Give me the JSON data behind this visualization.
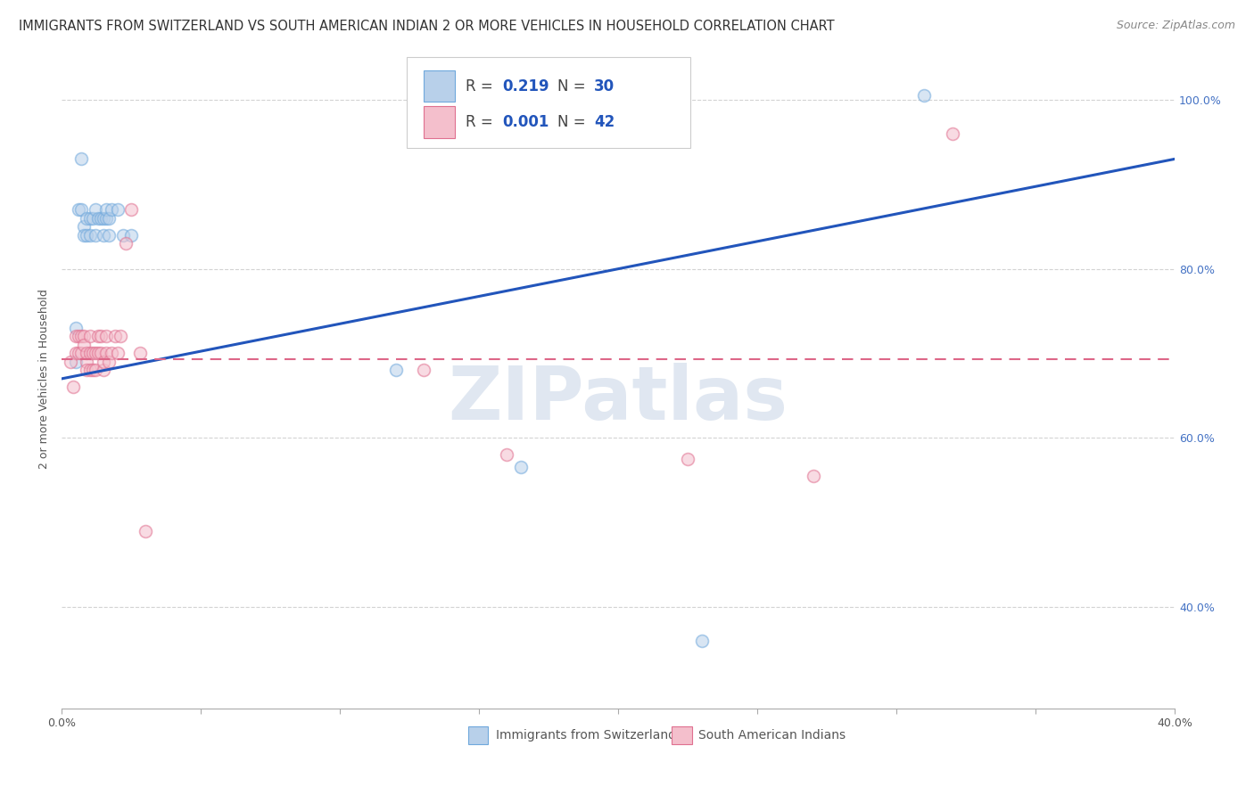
{
  "title": "IMMIGRANTS FROM SWITZERLAND VS SOUTH AMERICAN INDIAN 2 OR MORE VEHICLES IN HOUSEHOLD CORRELATION CHART",
  "source": "Source: ZipAtlas.com",
  "ylabel": "2 or more Vehicles in Household",
  "xlim": [
    0.0,
    0.4
  ],
  "ylim": [
    0.28,
    1.06
  ],
  "x_ticks": [
    0.0,
    0.05,
    0.1,
    0.15,
    0.2,
    0.25,
    0.3,
    0.35,
    0.4
  ],
  "x_tick_labels_show": {
    "0.0": "0.0%",
    "0.40": "40.0%"
  },
  "y_ticks_right": [
    0.4,
    0.6,
    0.8,
    1.0
  ],
  "y_tick_labels_right": [
    "40.0%",
    "60.0%",
    "80.0%",
    "100.0%"
  ],
  "blue_scatter_x": [
    0.005,
    0.005,
    0.006,
    0.007,
    0.007,
    0.008,
    0.008,
    0.009,
    0.009,
    0.01,
    0.01,
    0.011,
    0.012,
    0.012,
    0.013,
    0.014,
    0.015,
    0.015,
    0.016,
    0.016,
    0.017,
    0.017,
    0.018,
    0.02,
    0.022,
    0.025,
    0.12,
    0.165,
    0.23,
    0.31
  ],
  "blue_scatter_y": [
    0.69,
    0.73,
    0.87,
    0.93,
    0.87,
    0.85,
    0.84,
    0.84,
    0.86,
    0.84,
    0.86,
    0.86,
    0.87,
    0.84,
    0.86,
    0.86,
    0.86,
    0.84,
    0.86,
    0.87,
    0.84,
    0.86,
    0.87,
    0.87,
    0.84,
    0.84,
    0.68,
    0.565,
    0.36,
    1.005
  ],
  "pink_scatter_x": [
    0.003,
    0.004,
    0.005,
    0.005,
    0.006,
    0.006,
    0.007,
    0.007,
    0.008,
    0.008,
    0.009,
    0.009,
    0.009,
    0.01,
    0.01,
    0.01,
    0.011,
    0.011,
    0.012,
    0.012,
    0.013,
    0.013,
    0.014,
    0.014,
    0.015,
    0.015,
    0.016,
    0.016,
    0.017,
    0.018,
    0.019,
    0.02,
    0.021,
    0.023,
    0.025,
    0.028,
    0.03,
    0.13,
    0.16,
    0.225,
    0.27,
    0.32
  ],
  "pink_scatter_y": [
    0.69,
    0.66,
    0.7,
    0.72,
    0.7,
    0.72,
    0.7,
    0.72,
    0.72,
    0.71,
    0.69,
    0.68,
    0.7,
    0.68,
    0.7,
    0.72,
    0.68,
    0.7,
    0.68,
    0.7,
    0.7,
    0.72,
    0.7,
    0.72,
    0.68,
    0.69,
    0.7,
    0.72,
    0.69,
    0.7,
    0.72,
    0.7,
    0.72,
    0.83,
    0.87,
    0.7,
    0.49,
    0.68,
    0.58,
    0.575,
    0.555,
    0.96
  ],
  "blue_line_x": [
    0.0,
    0.4
  ],
  "blue_line_y": [
    0.67,
    0.93
  ],
  "pink_line_x": [
    0.0,
    0.4
  ],
  "pink_line_y": [
    0.693,
    0.693
  ],
  "scatter_size": 100,
  "scatter_alpha": 0.55,
  "scatter_linewidth": 1.2,
  "blue_scatter_color": "#b8d0ea",
  "blue_scatter_edge": "#6fa8dc",
  "pink_scatter_color": "#f4bfcc",
  "pink_scatter_edge": "#e07090",
  "blue_line_color": "#2255bb",
  "pink_line_color": "#dd6688",
  "grid_color": "#c8c8c8",
  "background_color": "#ffffff",
  "title_fontsize": 10.5,
  "source_fontsize": 9,
  "ylabel_fontsize": 9,
  "tick_fontsize": 9,
  "legend_r_color": "#2255bb",
  "legend_n_color": "#2255bb",
  "watermark_text": "ZIPatlas",
  "watermark_color": "#ccd8e8",
  "watermark_alpha": 0.6,
  "watermark_fontsize": 60,
  "bottom_legend_blue": "Immigrants from Switzerland",
  "bottom_legend_pink": "South American Indians"
}
